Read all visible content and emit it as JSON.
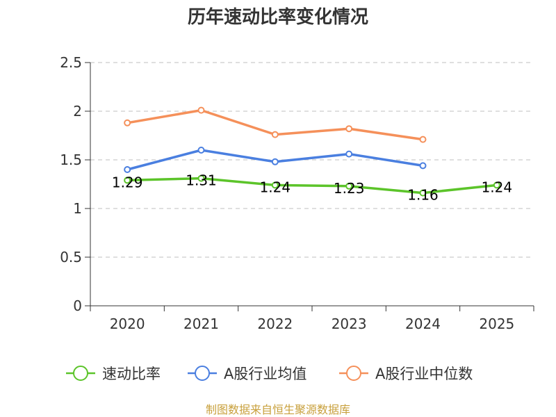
{
  "chart_data": {
    "type": "line",
    "title": "历年速动比率变化情况",
    "categories": [
      "2020",
      "2021",
      "2022",
      "2023",
      "2024",
      "2025"
    ],
    "ylim": [
      0,
      2.5
    ],
    "yticks": [
      "0",
      "0.5",
      "1",
      "1.5",
      "2",
      "2.5"
    ],
    "grid": true,
    "legend_position": "bottom",
    "series": [
      {
        "name": "速动比率",
        "color": "#5cc42a",
        "values": [
          1.29,
          1.31,
          1.24,
          1.23,
          1.16,
          1.24
        ],
        "labels": [
          "1.29",
          "1.31",
          "1.24",
          "1.23",
          "1.16",
          "1.24"
        ]
      },
      {
        "name": "A股行业均值",
        "color": "#4a7fe0",
        "values": [
          1.4,
          1.6,
          1.48,
          1.56,
          1.44,
          null
        ]
      },
      {
        "name": "A股行业中位数",
        "color": "#f5905a",
        "values": [
          1.88,
          2.01,
          1.76,
          1.82,
          1.71,
          null
        ]
      }
    ]
  },
  "footer": "制图数据来自恒生聚源数据库"
}
